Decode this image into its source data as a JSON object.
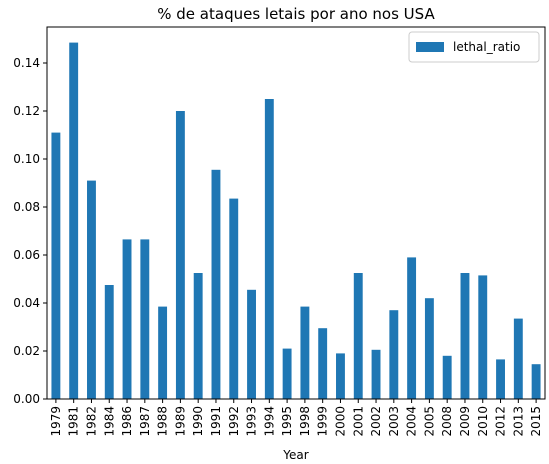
{
  "chart_data": {
    "type": "bar",
    "title": "% de ataques letais por ano nos USA",
    "xlabel": "Year",
    "ylabel": "",
    "ylim": [
      0,
      0.155
    ],
    "yticks": [
      "0.00",
      "0.02",
      "0.04",
      "0.06",
      "0.08",
      "0.10",
      "0.12",
      "0.14"
    ],
    "grid": false,
    "legend_position": "top-right",
    "categories": [
      "1979",
      "1981",
      "1982",
      "1984",
      "1986",
      "1987",
      "1988",
      "1989",
      "1990",
      "1991",
      "1992",
      "1993",
      "1994",
      "1995",
      "1998",
      "1999",
      "2000",
      "2001",
      "2002",
      "2003",
      "2004",
      "2005",
      "2008",
      "2009",
      "2010",
      "2012",
      "2013",
      "2015"
    ],
    "series": [
      {
        "name": "lethal_ratio",
        "color": "#1f77b4",
        "values": [
          0.111,
          0.1485,
          0.091,
          0.0475,
          0.0665,
          0.0665,
          0.0385,
          0.12,
          0.0525,
          0.0955,
          0.0835,
          0.0455,
          0.125,
          0.021,
          0.0385,
          0.0295,
          0.019,
          0.0525,
          0.0205,
          0.037,
          0.059,
          0.042,
          0.018,
          0.0525,
          0.0515,
          0.0165,
          0.0335,
          0.0145
        ]
      }
    ]
  }
}
